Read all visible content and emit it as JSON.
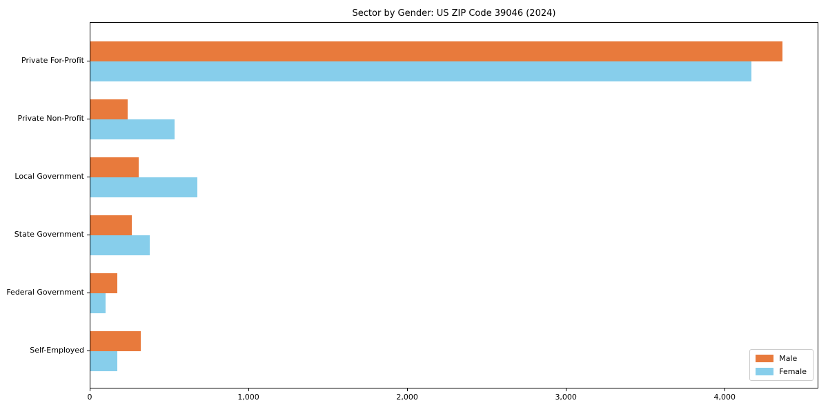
{
  "title": "Sector by Gender: US ZIP Code 39046 (2024)",
  "chart_data": {
    "type": "bar",
    "orientation": "horizontal",
    "title": "Sector by Gender: US ZIP Code 39046 (2024)",
    "categories": [
      "Private For-Profit",
      "Private Non-Profit",
      "Local Government",
      "State Government",
      "Federal Government",
      "Self-Employed"
    ],
    "series": [
      {
        "name": "Male",
        "color": "#e87a3c",
        "values": [
          4370,
          236,
          303,
          261,
          168,
          317
        ]
      },
      {
        "name": "Female",
        "color": "#87ceeb",
        "values": [
          4170,
          533,
          675,
          374,
          94,
          168
        ]
      }
    ],
    "xlabel": "",
    "ylabel": "",
    "xlim": [
      0,
      4590
    ],
    "x_ticks": [
      0,
      1000,
      2000,
      3000,
      4000
    ],
    "x_tick_labels": [
      "0",
      "1,000",
      "2,000",
      "3,000",
      "4,000"
    ],
    "grid": false,
    "legend": {
      "position": "lower right",
      "entries": [
        "Male",
        "Female"
      ]
    }
  }
}
